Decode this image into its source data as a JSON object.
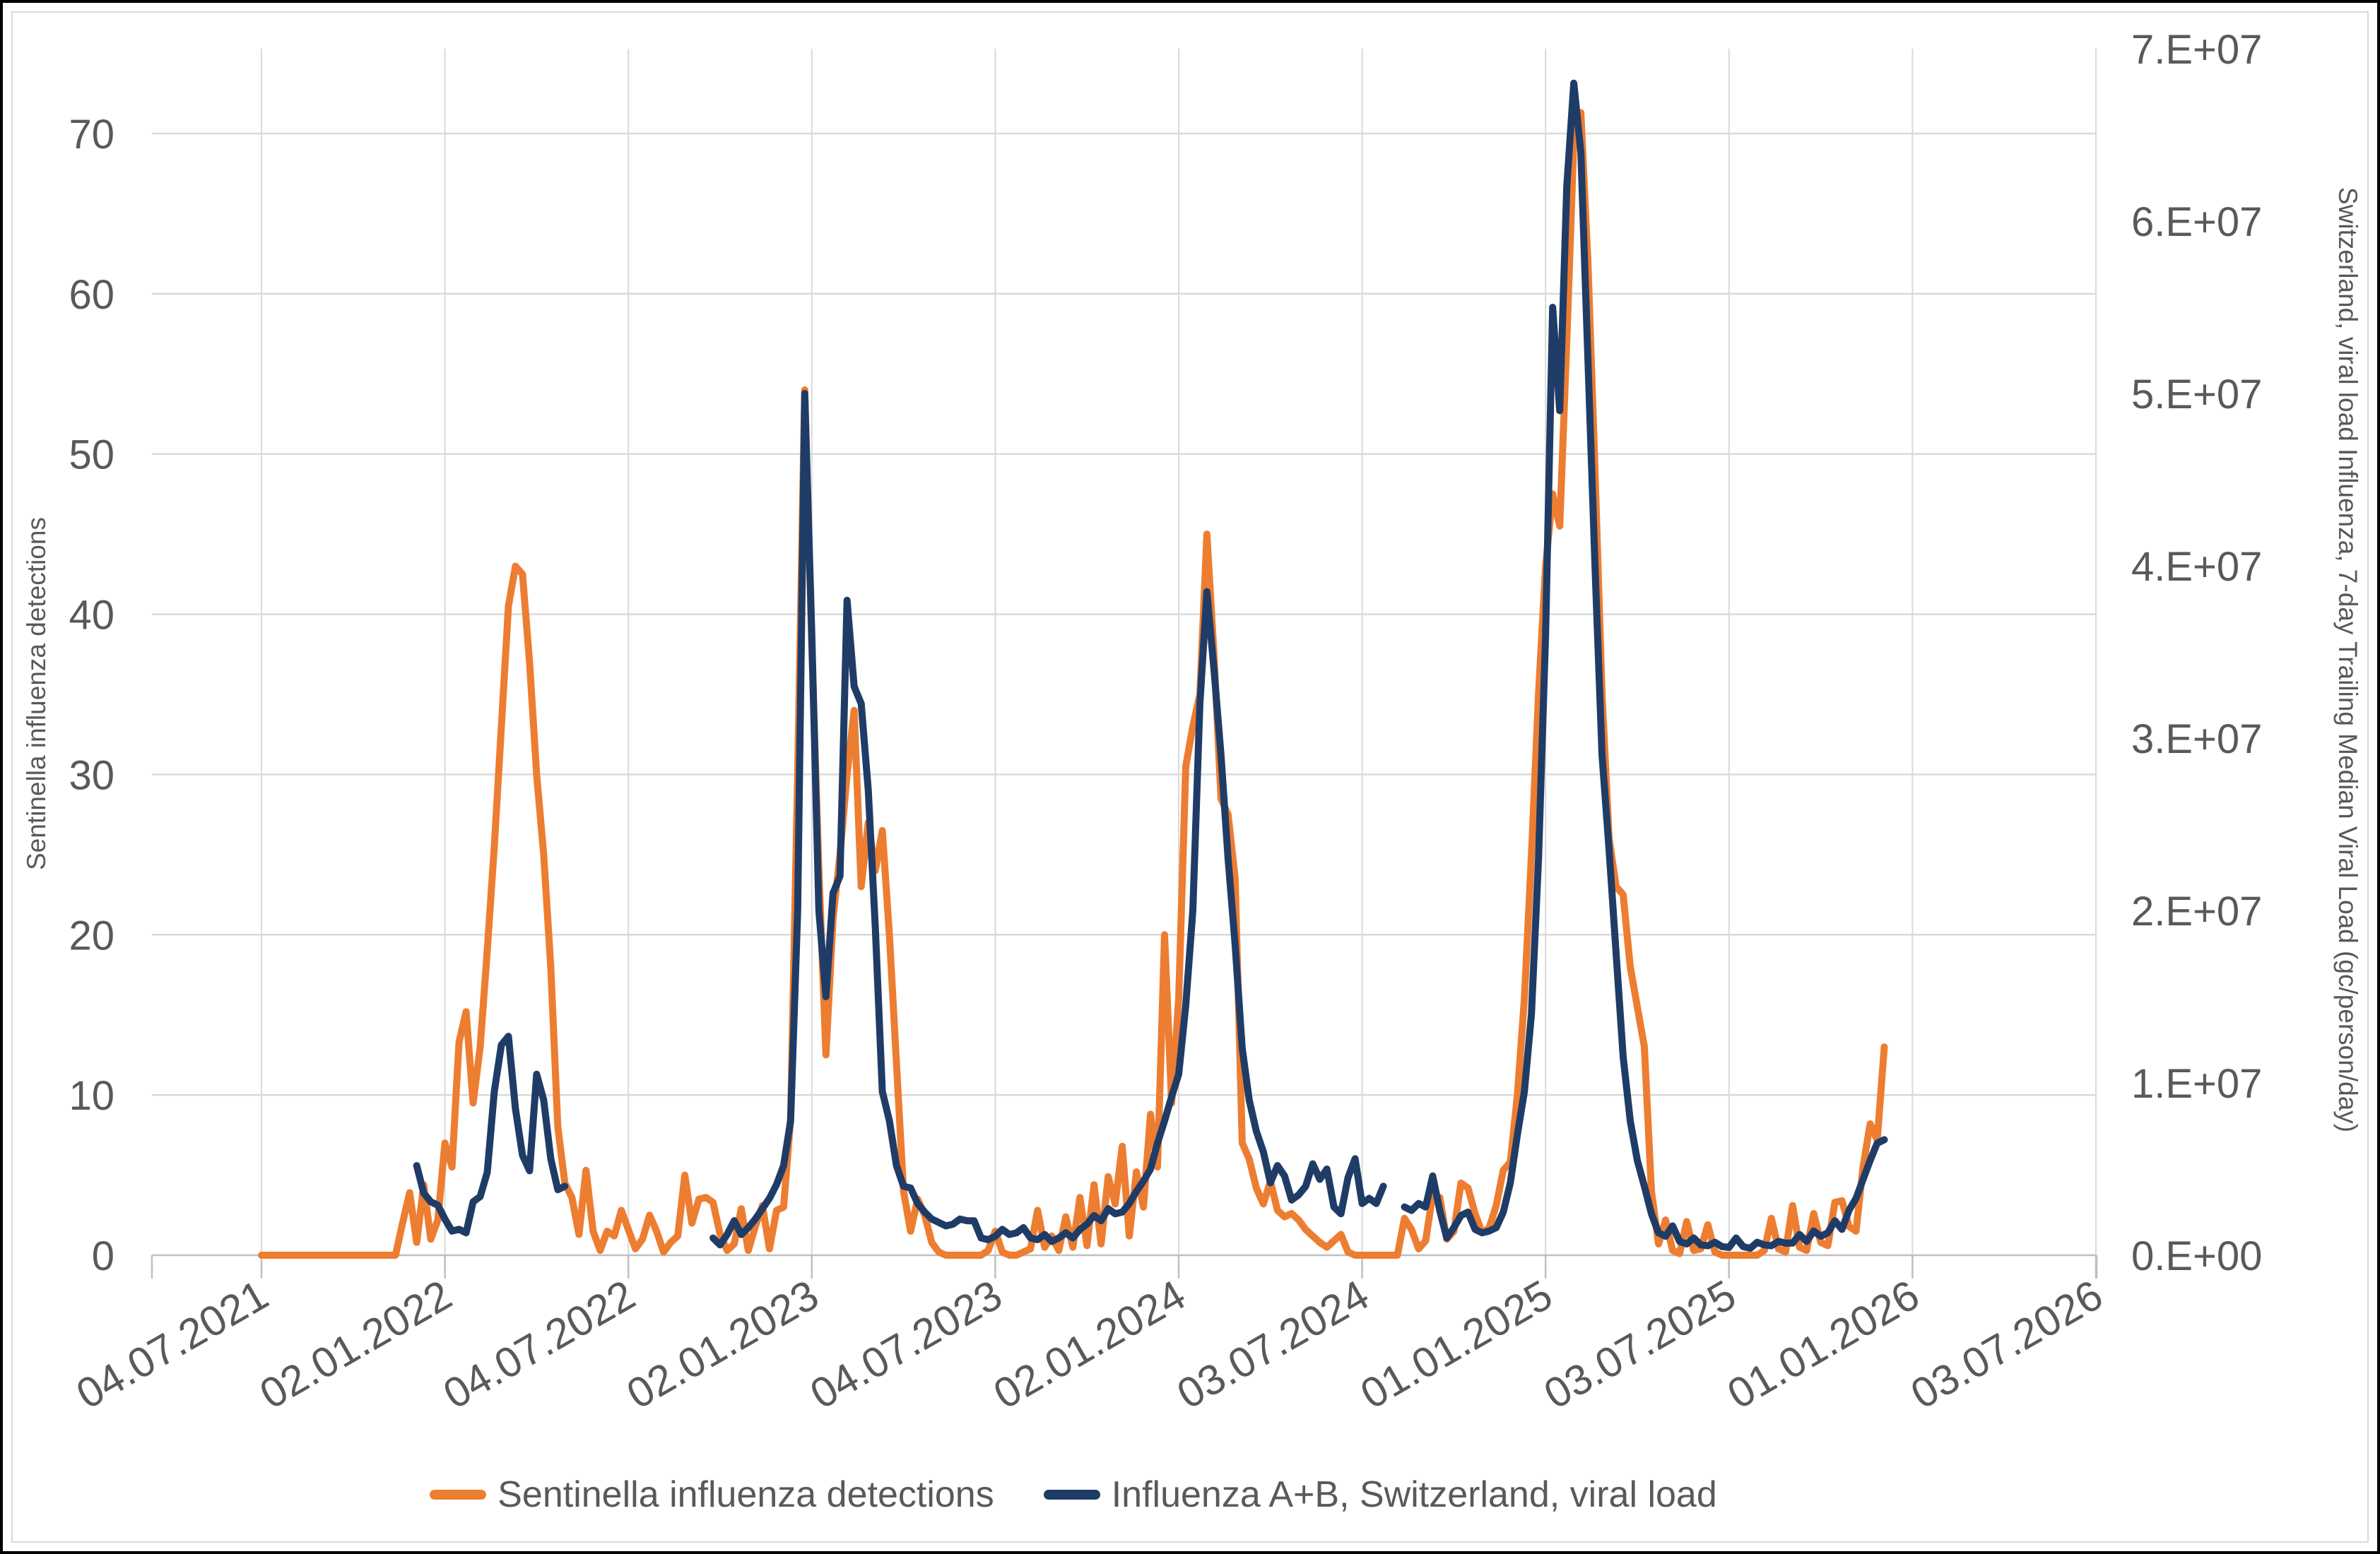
{
  "chart_data": {
    "type": "line",
    "x_start_date": "2021-07-04",
    "x_interval_days": 7,
    "x_tick_labels": [
      "04.07.2021",
      "02.01.2022",
      "04.07.2022",
      "02.01.2023",
      "04.07.2023",
      "02.01.2024",
      "03.07.2024",
      "01.01.2025",
      "03.07.2025",
      "01.01.2026",
      "03.07.2026"
    ],
    "grid": true,
    "legend_position": "bottom",
    "left_axis": {
      "title": "Sentinella influenza detections",
      "ticks": [
        0,
        10,
        20,
        30,
        40,
        50,
        60,
        70
      ],
      "lim": [
        0,
        70
      ]
    },
    "right_axis": {
      "title": "Switzerland, viral load Influenza, 7-day Trailing Median Viral Load (gc/person/day)",
      "tick_labels": [
        "0.E+00",
        "1.E+07",
        "2.E+07",
        "3.E+07",
        "4.E+07",
        "5.E+07",
        "6.E+07",
        "7.E+07"
      ],
      "lim": [
        0,
        70000000.0
      ]
    },
    "series": [
      {
        "name": "Sentinella influenza detections",
        "axis": "left",
        "color": "#ED7D31",
        "values": [
          0,
          0,
          0,
          0,
          0,
          0,
          0,
          0,
          0,
          0,
          0,
          0,
          0,
          0,
          0,
          0,
          0,
          0,
          0,
          0,
          2,
          3.9,
          0.8,
          4.4,
          1,
          2.2,
          7,
          5.5,
          13.3,
          15.2,
          9.5,
          13,
          19,
          25.5,
          33,
          40.5,
          43,
          42.5,
          37,
          30,
          25,
          18,
          8,
          4.5,
          3.6,
          1.3,
          5.3,
          1.5,
          0.3,
          1.5,
          1.2,
          2.8,
          1.6,
          0.4,
          1,
          2.5,
          1.5,
          0.2,
          0.8,
          1.2,
          5,
          2,
          3.5,
          3.6,
          3.3,
          1.3,
          0.3,
          0.7,
          2.9,
          0.3,
          1.8,
          3.1,
          0.4,
          2.8,
          3,
          8.5,
          30,
          54,
          38,
          24,
          12.5,
          21,
          25,
          30,
          34,
          23,
          27,
          24,
          26.5,
          20,
          12,
          4,
          1.5,
          3.5,
          2.5,
          0.8,
          0.2,
          0,
          0,
          0,
          0,
          0,
          0,
          0.3,
          1.5,
          0.2,
          0,
          0,
          0.2,
          0.4,
          2.8,
          0.5,
          1.2,
          0.3,
          2.4,
          0.5,
          3.6,
          0.6,
          4.4,
          0.7,
          4.9,
          3.2,
          6.8,
          1.2,
          5.2,
          3,
          8.8,
          5.5,
          20,
          9.5,
          16,
          30.5,
          33,
          35,
          45,
          37.5,
          28.5,
          27.5,
          23.5,
          7,
          6,
          4.2,
          3.2,
          4.6,
          2.8,
          2.4,
          2.6,
          2.2,
          1.6,
          1.2,
          0.8,
          0.5,
          0.9,
          1.3,
          0.2,
          0,
          0,
          0,
          0,
          0,
          0,
          0,
          2.3,
          1.6,
          0.4,
          0.9,
          3.8,
          3.6,
          1,
          1.5,
          4.5,
          4.2,
          2.6,
          1.4,
          1.7,
          3.1,
          5.3,
          5.8,
          10,
          16,
          25,
          35,
          43,
          47.5,
          45.5,
          57,
          69.5,
          71.3,
          62,
          49,
          35,
          26,
          23,
          22.5,
          18,
          15.5,
          13,
          4,
          0.7,
          2.2,
          0.3,
          0.1,
          2.1,
          0.3,
          0.4,
          1.9,
          0.2,
          0,
          0,
          0,
          0,
          0,
          0,
          0.3,
          2.3,
          0.4,
          0.2,
          3.1,
          0.5,
          0.3,
          2.6,
          0.8,
          0.6,
          3.3,
          3.4,
          1.8,
          1.5,
          5.5,
          8.2,
          7.2,
          13
        ]
      },
      {
        "name": "Influenza A+B, Switzerland, viral load",
        "axis": "right",
        "color": "#1F3C67",
        "values": [
          null,
          null,
          null,
          null,
          null,
          null,
          null,
          null,
          null,
          null,
          null,
          null,
          null,
          null,
          null,
          null,
          null,
          null,
          null,
          null,
          null,
          null,
          5200000.0,
          3600000.0,
          3100000.0,
          2900000.0,
          2100000.0,
          1400000.0,
          1500000.0,
          1300000.0,
          3100000.0,
          3400000.0,
          4800000.0,
          9500000.0,
          12200000.0,
          12700000.0,
          8500000.0,
          5800000.0,
          4900000.0,
          10500000.0,
          9000000.0,
          5600000.0,
          3800000.0,
          4000000.0,
          null,
          null,
          null,
          null,
          null,
          null,
          null,
          null,
          null,
          null,
          null,
          null,
          null,
          null,
          null,
          null,
          null,
          null,
          null,
          null,
          1000000.0,
          600000.0,
          1200000.0,
          2000000.0,
          1200000.0,
          1600000.0,
          2100000.0,
          2700000.0,
          3300000.0,
          4100000.0,
          5200000.0,
          7800000.0,
          20000000.0,
          50000000.0,
          36000000.0,
          20000000.0,
          15000000.0,
          21000000.0,
          22000000.0,
          38000000.0,
          33000000.0,
          32000000.0,
          27000000.0,
          19000000.0,
          9500000.0,
          7800000.0,
          5200000.0,
          4000000.0,
          3900000.0,
          3000000.0,
          2500000.0,
          2100000.0,
          1900000.0,
          1700000.0,
          1800000.0,
          2100000.0,
          2000000.0,
          2000000.0,
          1000000.0,
          900000.0,
          1100000.0,
          1500000.0,
          1200000.0,
          1300000.0,
          1600000.0,
          1000000.0,
          900000.0,
          1200000.0,
          800000.0,
          1000000.0,
          1300000.0,
          1000000.0,
          1500000.0,
          1800000.0,
          2300000.0,
          2000000.0,
          2700000.0,
          2400000.0,
          2500000.0,
          3000000.0,
          3700000.0,
          4300000.0,
          5000000.0,
          6500000.0,
          7800000.0,
          9200000.0,
          10500000.0,
          14500000.0,
          20000000.0,
          32000000.0,
          38500000.0,
          34000000.0,
          29000000.0,
          23000000.0,
          18000000.0,
          12000000.0,
          9000000.0,
          7200000.0,
          6000000.0,
          4200000.0,
          5200000.0,
          4600000.0,
          3200000.0,
          3500000.0,
          4000000.0,
          5300000.0,
          4400000.0,
          5000000.0,
          2800000.0,
          2400000.0,
          4500000.0,
          5600000.0,
          3000000.0,
          3300000.0,
          3000000.0,
          4000000.0,
          null,
          null,
          2800000.0,
          2600000.0,
          3000000.0,
          2800000.0,
          4600000.0,
          2600000.0,
          1000000.0,
          1600000.0,
          2300000.0,
          2500000.0,
          1500000.0,
          1300000.0,
          1400000.0,
          1600000.0,
          2500000.0,
          4200000.0,
          7000000.0,
          9500000.0,
          14000000.0,
          23000000.0,
          36000000.0,
          55000000.0,
          49000000.0,
          62000000.0,
          68000000.0,
          64000000.0,
          52000000.0,
          40000000.0,
          29000000.0,
          23500000.0,
          17500000.0,
          11500000.0,
          7800000.0,
          5500000.0,
          4000000.0,
          2400000.0,
          1300000.0,
          1100000.0,
          1700000.0,
          800000.0,
          650000.0,
          1000000.0,
          600000.0,
          550000.0,
          750000.0,
          500000.0,
          450000.0,
          1000000.0,
          500000.0,
          400000.0,
          750000.0,
          600000.0,
          550000.0,
          800000.0,
          700000.0,
          700000.0,
          1200000.0,
          800000.0,
          1400000.0,
          1100000.0,
          1300000.0,
          2000000.0,
          1500000.0,
          2600000.0,
          3300000.0,
          4400000.0,
          5500000.0,
          6500000.0,
          6700000.0
        ]
      }
    ]
  },
  "style": {
    "gridline_color": "#D9D9D9",
    "axis_color": "#BFBFBF",
    "label_color": "#595959"
  }
}
